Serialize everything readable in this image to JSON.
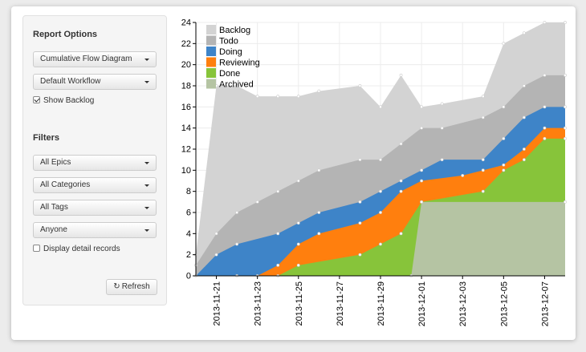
{
  "report_options": {
    "heading": "Report Options",
    "chart_type": "Cumulative Flow Diagram",
    "workflow": "Default Workflow",
    "show_backlog_label": "Show Backlog",
    "show_backlog_checked": true
  },
  "filters": {
    "heading": "Filters",
    "epics": "All Epics",
    "categories": "All Categories",
    "tags": "All Tags",
    "assignee": "Anyone",
    "detail_records_label": "Display detail records",
    "detail_records_checked": false
  },
  "refresh_label": "Refresh",
  "icons": {
    "dropdown": "caret-down-icon",
    "refresh": "refresh-icon",
    "checkbox": "checkbox-icon"
  },
  "chart_data": {
    "type": "area",
    "stacked": true,
    "x_start": "2013-11-20",
    "x_end": "2013-12-08",
    "x_ticks": [
      "2013-11-21",
      "2013-11-23",
      "2013-11-25",
      "2013-11-27",
      "2013-11-29",
      "2013-12-01",
      "2013-12-03",
      "2013-12-05",
      "2013-12-07"
    ],
    "y_ticks": [
      0,
      2,
      4,
      6,
      8,
      10,
      12,
      14,
      16,
      18,
      20,
      22,
      24
    ],
    "ylim": [
      0,
      24
    ],
    "grid": true,
    "legend_position": "top-left",
    "series": [
      {
        "name": "Archived",
        "color": "#b5c4a3",
        "points": [
          [
            "2013-11-30T12:00",
            0
          ],
          [
            "2013-12-01",
            7
          ],
          [
            "2013-12-08",
            7
          ]
        ]
      },
      {
        "name": "Done",
        "color": "#87c43a",
        "points": [
          [
            "2013-11-24",
            0
          ],
          [
            "2013-11-25",
            1
          ],
          [
            "2013-11-28",
            2
          ],
          [
            "2013-11-29",
            3
          ],
          [
            "2013-11-30",
            4
          ],
          [
            "2013-12-01",
            7
          ],
          [
            "2013-12-04",
            8
          ],
          [
            "2013-12-05",
            10
          ],
          [
            "2013-12-06",
            11
          ],
          [
            "2013-12-07",
            13
          ],
          [
            "2013-12-08",
            13
          ]
        ]
      },
      {
        "name": "Reviewing",
        "color": "#ff7f0e",
        "points": [
          [
            "2013-11-22",
            0
          ],
          [
            "2013-11-23",
            0
          ],
          [
            "2013-11-24",
            1
          ],
          [
            "2013-11-25",
            3
          ],
          [
            "2013-11-26",
            4
          ],
          [
            "2013-11-28",
            5
          ],
          [
            "2013-11-29",
            6
          ],
          [
            "2013-11-30",
            8
          ],
          [
            "2013-12-01",
            9
          ],
          [
            "2013-12-03",
            9.5
          ],
          [
            "2013-12-04",
            10
          ],
          [
            "2013-12-05",
            10.5
          ],
          [
            "2013-12-06",
            12
          ],
          [
            "2013-12-07",
            14
          ],
          [
            "2013-12-08",
            14
          ]
        ]
      },
      {
        "name": "Doing",
        "color": "#3e84c8",
        "points": [
          [
            "2013-11-20",
            0
          ],
          [
            "2013-11-21",
            2
          ],
          [
            "2013-11-22",
            3
          ],
          [
            "2013-11-24",
            4
          ],
          [
            "2013-11-25",
            5
          ],
          [
            "2013-11-26",
            6
          ],
          [
            "2013-11-28",
            7
          ],
          [
            "2013-11-29",
            8
          ],
          [
            "2013-11-30",
            9
          ],
          [
            "2013-12-01",
            10
          ],
          [
            "2013-12-02",
            11
          ],
          [
            "2013-12-04",
            11
          ],
          [
            "2013-12-05",
            13
          ],
          [
            "2013-12-06",
            15
          ],
          [
            "2013-12-07",
            16
          ],
          [
            "2013-12-08",
            16
          ]
        ]
      },
      {
        "name": "Todo",
        "color": "#b4b4b4",
        "points": [
          [
            "2013-11-20",
            1
          ],
          [
            "2013-11-21",
            4
          ],
          [
            "2013-11-22",
            6
          ],
          [
            "2013-11-23",
            7
          ],
          [
            "2013-11-24",
            8
          ],
          [
            "2013-11-25",
            9
          ],
          [
            "2013-11-26",
            10
          ],
          [
            "2013-11-28",
            11
          ],
          [
            "2013-11-29",
            11
          ],
          [
            "2013-11-30",
            12.5
          ],
          [
            "2013-12-01",
            14
          ],
          [
            "2013-12-02",
            14
          ],
          [
            "2013-12-04",
            15
          ],
          [
            "2013-12-05",
            16
          ],
          [
            "2013-12-06",
            18
          ],
          [
            "2013-12-07",
            19
          ],
          [
            "2013-12-08",
            19
          ]
        ]
      },
      {
        "name": "Backlog",
        "color": "#d3d3d3",
        "points": [
          [
            "2013-11-20",
            2
          ],
          [
            "2013-11-21",
            18
          ],
          [
            "2013-11-22",
            18
          ],
          [
            "2013-11-23",
            17
          ],
          [
            "2013-11-24",
            17
          ],
          [
            "2013-11-25",
            17
          ],
          [
            "2013-11-26",
            17.5
          ],
          [
            "2013-11-28",
            18
          ],
          [
            "2013-11-29",
            16
          ],
          [
            "2013-11-30",
            19
          ],
          [
            "2013-12-01",
            16
          ],
          [
            "2013-12-02",
            16.3
          ],
          [
            "2013-12-04",
            17
          ],
          [
            "2013-12-05",
            22
          ],
          [
            "2013-12-06",
            23
          ],
          [
            "2013-12-07",
            24
          ],
          [
            "2013-12-08",
            24
          ]
        ]
      }
    ]
  }
}
